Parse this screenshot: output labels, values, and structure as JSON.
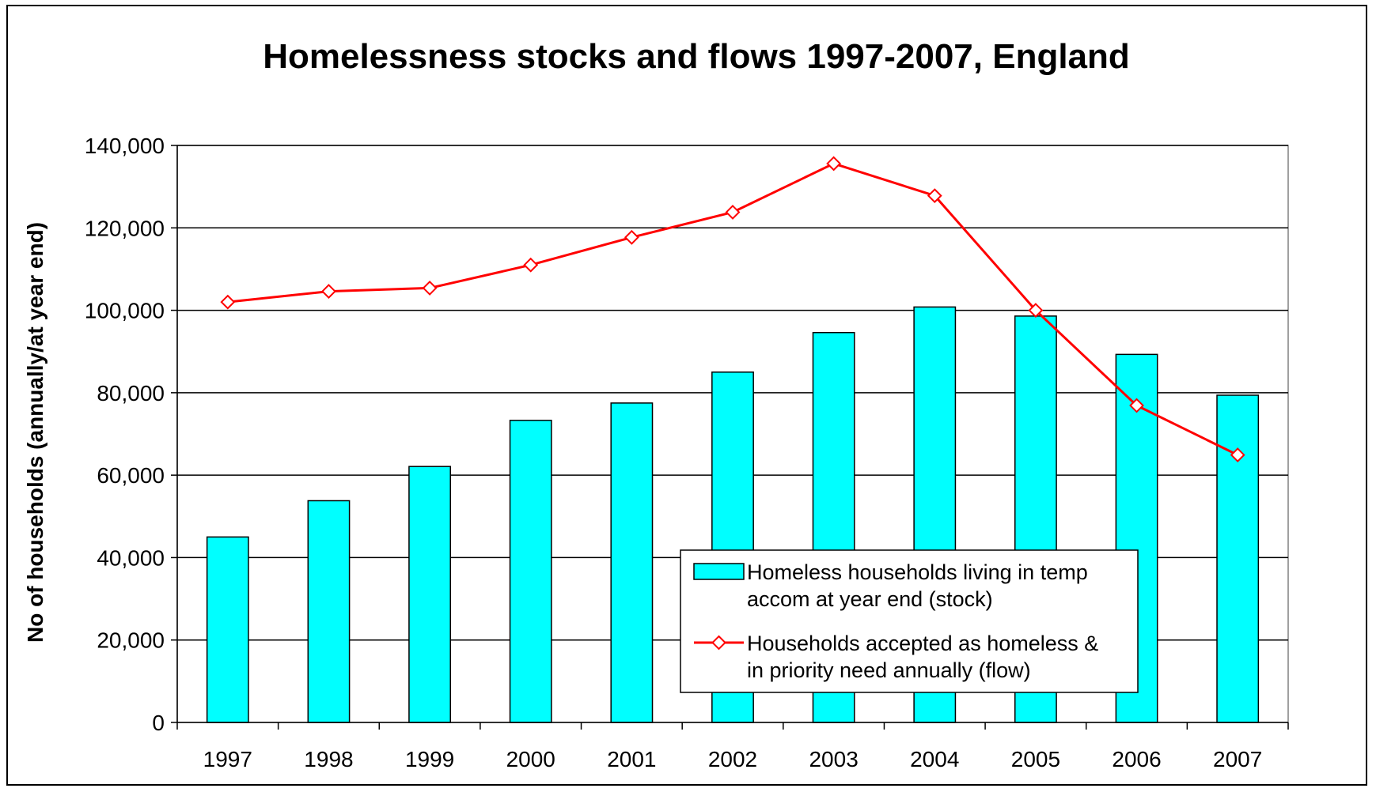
{
  "chart_data": {
    "type": "bar",
    "title": "Homelessness stocks and flows 1997-2007, England",
    "xlabel": "",
    "ylabel": "No of households (annually/at year end)",
    "ylim": [
      0,
      140000
    ],
    "yticks": [
      0,
      20000,
      40000,
      60000,
      80000,
      100000,
      120000,
      140000
    ],
    "ytick_labels": [
      "0",
      "20,000",
      "40,000",
      "60,000",
      "80,000",
      "100,000",
      "120,000",
      "140,000"
    ],
    "categories": [
      "1997",
      "1998",
      "1999",
      "2000",
      "2001",
      "2002",
      "2003",
      "2004",
      "2005",
      "2006",
      "2007"
    ],
    "grid": true,
    "legend_position": "lower-right inside plot",
    "series": [
      {
        "name_lines": [
          "Homeless households living in temp",
          "accom at year end (stock)"
        ],
        "type": "bar",
        "color": "#00ffff",
        "values": [
          45000,
          53800,
          62100,
          73300,
          77500,
          85000,
          94600,
          100800,
          98600,
          89300,
          79400
        ]
      },
      {
        "name_lines": [
          "Households accepted as homeless &",
          "in priority need annually (flow)"
        ],
        "type": "line",
        "color": "#ff0000",
        "marker": "diamond",
        "values": [
          102000,
          104600,
          105400,
          111000,
          117700,
          123800,
          135600,
          127800,
          100000,
          76900,
          64900
        ]
      }
    ]
  }
}
